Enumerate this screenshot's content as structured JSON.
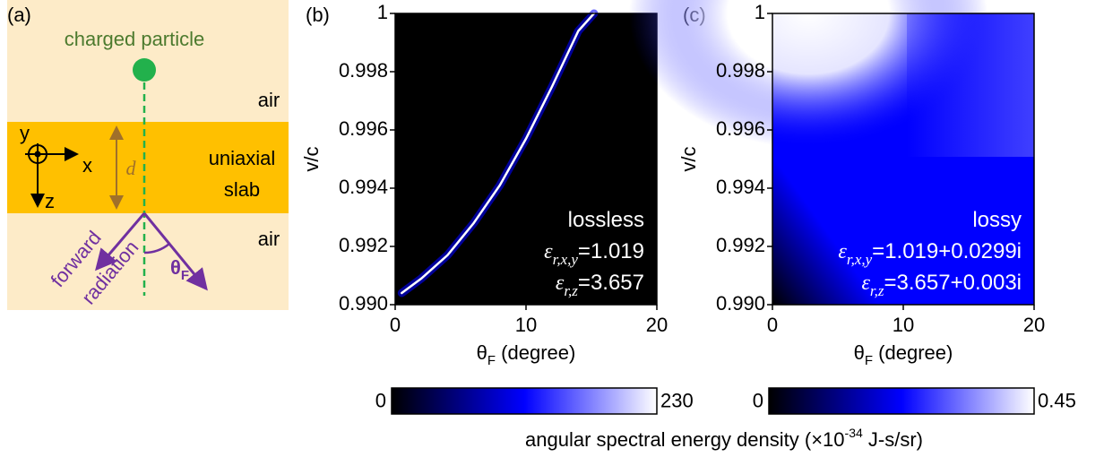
{
  "diagram": {
    "panel_label": "(a)",
    "particle_label": "charged particle",
    "top_medium": "air",
    "slab_line_1": "uniaxial",
    "slab_line_2": "slab",
    "bottom_medium": "air",
    "thickness": "d",
    "axis_y": "y",
    "axis_x": "x",
    "axis_z": "z",
    "radiation_line_1": "forward",
    "radiation_line_2": "radiation",
    "angle_symbol": "θ",
    "angle_sub": "F"
  },
  "chart_data": [
    {
      "type": "heatmap",
      "panel_label": "(b)",
      "x_label": {
        "symbol": "θ",
        "sub": "F",
        "text": " (degree)"
      },
      "y_label": "v/c",
      "xlim": [
        0,
        20
      ],
      "xticks": [
        0,
        10,
        20
      ],
      "ylim": [
        0.99,
        1
      ],
      "yticks": [
        {
          "value": 0.99,
          "label": "0.990"
        },
        0.992,
        0.994,
        0.996,
        0.998,
        1
      ],
      "x": [
        0.5,
        2,
        4,
        6,
        8,
        10,
        12,
        14,
        15.2
      ],
      "values": [
        0.9904,
        0.9909,
        0.9917,
        0.9928,
        0.9941,
        0.9957,
        0.9975,
        0.9994,
        1.0
      ],
      "colormap": [
        "#000000",
        "#0000ff",
        "#ffffff"
      ],
      "clim": [
        0,
        230
      ],
      "cticks": [
        0,
        230
      ],
      "annotations": [
        {
          "text": "lossless"
        },
        {
          "symbol": "ε",
          "sub": "r,x,y",
          "text": "=1.019"
        },
        {
          "symbol": "ε",
          "sub": "r,z",
          "text": "=3.657"
        }
      ]
    },
    {
      "type": "heatmap",
      "panel_label": "(c)",
      "x_label": {
        "symbol": "θ",
        "sub": "F",
        "text": " (degree)"
      },
      "y_label": "v/c",
      "xlim": [
        0,
        20
      ],
      "xticks": [
        0,
        10,
        20
      ],
      "ylim": [
        0.99,
        1
      ],
      "yticks": [
        {
          "value": 0.99,
          "label": "0.990"
        },
        0.992,
        0.994,
        0.996,
        0.998,
        1
      ],
      "colormap": [
        "#000000",
        "#0000ff",
        "#ffffff"
      ],
      "clim": [
        0,
        0.45
      ],
      "cticks": [
        0,
        0.45
      ],
      "annotations": [
        {
          "text": "lossy"
        },
        {
          "symbol": "ε",
          "sub": "r,x,y",
          "text": "=1.019+0.0299i"
        },
        {
          "symbol": "ε",
          "sub": "r,z",
          "text": "=3.657+0.003i"
        }
      ]
    }
  ],
  "colorbar_label": {
    "text": "angular spectral energy density (×10",
    "sup": "-34",
    "unit": " J-s/sr)"
  }
}
